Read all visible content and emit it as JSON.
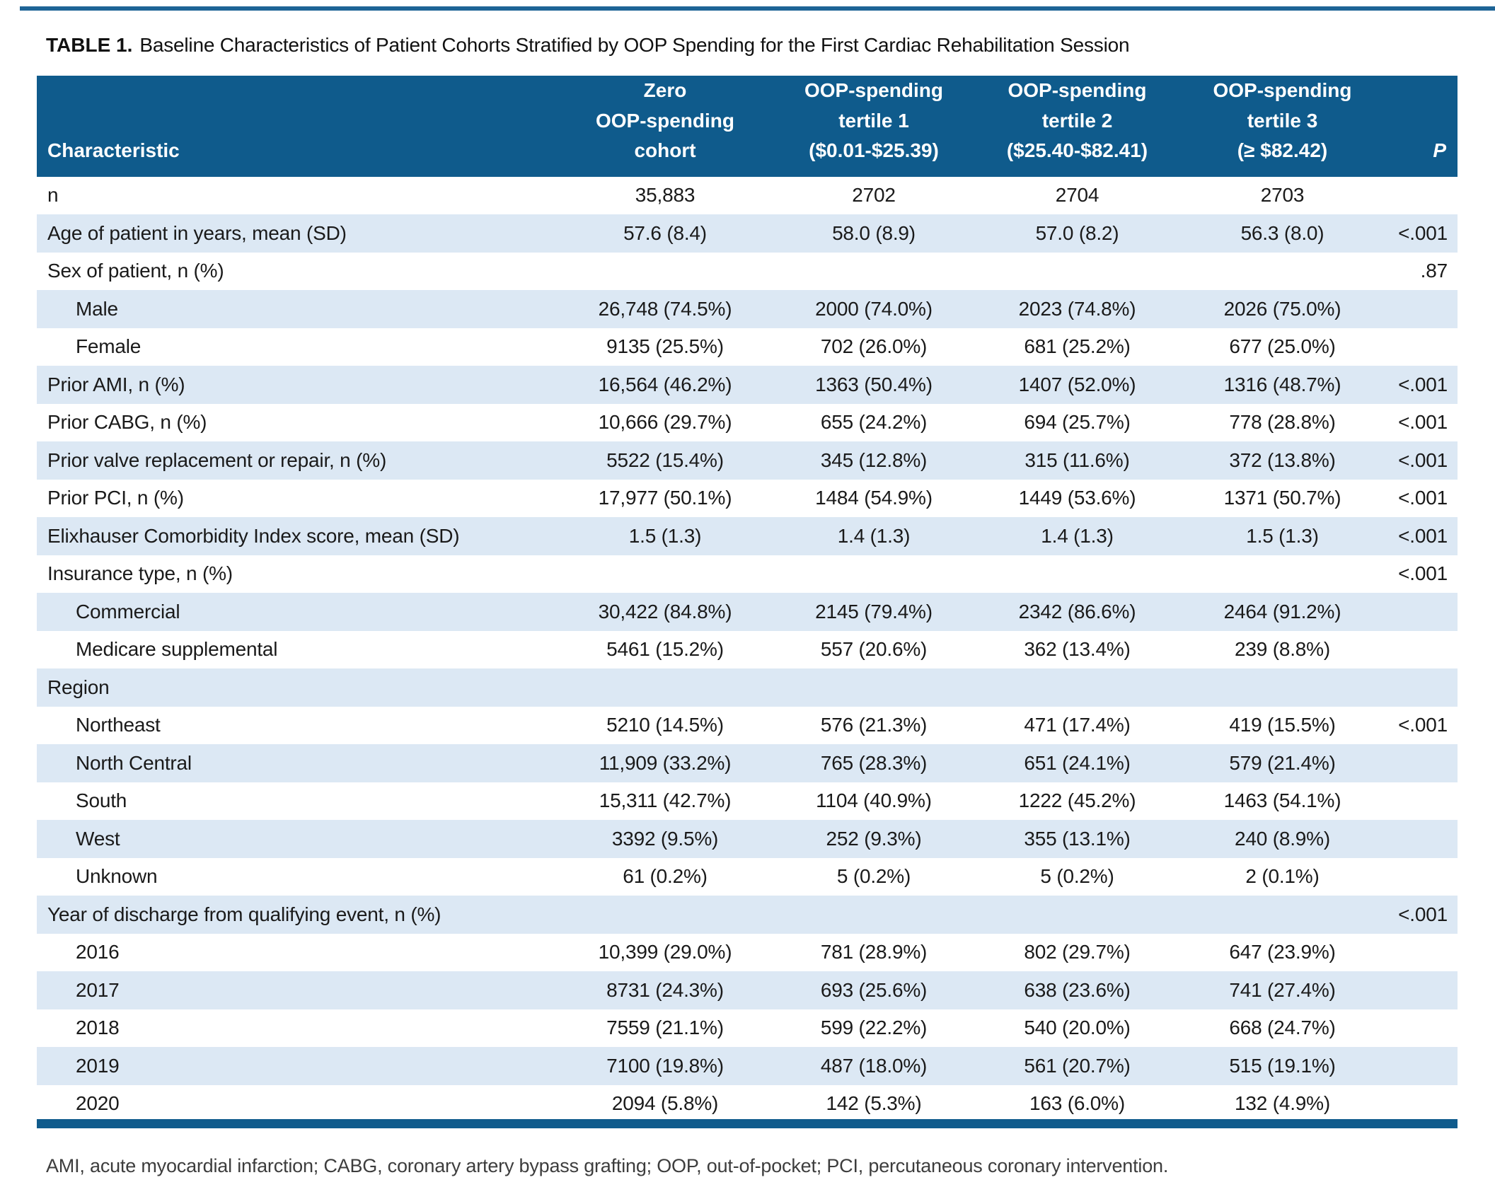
{
  "colors": {
    "header_bg": "#0F5B8C",
    "row_alt_bg": "#DCE8F4",
    "accent_rule": "#1E6496",
    "text": "#1A1A1A",
    "footnote_text": "#3D3D3D"
  },
  "title": {
    "label": "TABLE 1.",
    "text": "Baseline Characteristics of Patient Cohorts Stratified by OOP Spending for the First Cardiac Rehabilitation Session"
  },
  "table": {
    "header": {
      "characteristic": "Characteristic",
      "zero_cohort": "Zero\nOOP-spending\ncohort",
      "tertile1": "OOP-spending\ntertile 1\n($0.01-$25.39)",
      "tertile2": "OOP-spending\ntertile 2\n($25.40-$82.41)",
      "tertile3": "OOP-spending\ntertile 3\n(≥ $82.42)",
      "p": "P"
    },
    "rows": [
      {
        "label": "n",
        "indent": false,
        "values": [
          "35,883",
          "2702",
          "2704",
          "2703"
        ],
        "p": ""
      },
      {
        "label": "Age of patient in years, mean (SD)",
        "indent": false,
        "values": [
          "57.6 (8.4)",
          "58.0 (8.9)",
          "57.0 (8.2)",
          "56.3 (8.0)"
        ],
        "p": "<.001"
      },
      {
        "label": "Sex of patient, n (%)",
        "indent": false,
        "values": [
          "",
          "",
          "",
          ""
        ],
        "p": ".87"
      },
      {
        "label": "Male",
        "indent": true,
        "values": [
          "26,748 (74.5%)",
          "2000 (74.0%)",
          "2023 (74.8%)",
          "2026 (75.0%)"
        ],
        "p": ""
      },
      {
        "label": "Female",
        "indent": true,
        "values": [
          "9135 (25.5%)",
          "702 (26.0%)",
          "681 (25.2%)",
          "677 (25.0%)"
        ],
        "p": ""
      },
      {
        "label": "Prior AMI, n (%)",
        "indent": false,
        "values": [
          "16,564 (46.2%)",
          "1363 (50.4%)",
          "1407 (52.0%)",
          "1316 (48.7%)"
        ],
        "p": "<.001"
      },
      {
        "label": "Prior CABG, n (%)",
        "indent": false,
        "values": [
          "10,666 (29.7%)",
          "655 (24.2%)",
          "694 (25.7%)",
          "778 (28.8%)"
        ],
        "p": "<.001"
      },
      {
        "label": "Prior valve replacement or repair, n (%)",
        "indent": false,
        "values": [
          "5522 (15.4%)",
          "345 (12.8%)",
          "315 (11.6%)",
          "372 (13.8%)"
        ],
        "p": "<.001"
      },
      {
        "label": "Prior PCI, n (%)",
        "indent": false,
        "values": [
          "17,977 (50.1%)",
          "1484 (54.9%)",
          "1449 (53.6%)",
          "1371 (50.7%)"
        ],
        "p": "<.001"
      },
      {
        "label": "Elixhauser Comorbidity Index score, mean (SD)",
        "indent": false,
        "values": [
          "1.5 (1.3)",
          "1.4 (1.3)",
          "1.4 (1.3)",
          "1.5 (1.3)"
        ],
        "p": "<.001"
      },
      {
        "label": "Insurance type, n (%)",
        "indent": false,
        "values": [
          "",
          "",
          "",
          ""
        ],
        "p": "<.001"
      },
      {
        "label": "Commercial",
        "indent": true,
        "values": [
          "30,422 (84.8%)",
          "2145 (79.4%)",
          "2342 (86.6%)",
          "2464 (91.2%)"
        ],
        "p": ""
      },
      {
        "label": "Medicare supplemental",
        "indent": true,
        "values": [
          "5461 (15.2%)",
          "557 (20.6%)",
          "362 (13.4%)",
          "239 (8.8%)"
        ],
        "p": ""
      },
      {
        "label": "Region",
        "indent": false,
        "values": [
          "",
          "",
          "",
          ""
        ],
        "p": ""
      },
      {
        "label": "Northeast",
        "indent": true,
        "values": [
          "5210 (14.5%)",
          "576 (21.3%)",
          "471 (17.4%)",
          "419 (15.5%)"
        ],
        "p": "<.001"
      },
      {
        "label": "North Central",
        "indent": true,
        "values": [
          "11,909 (33.2%)",
          "765 (28.3%)",
          "651 (24.1%)",
          "579 (21.4%)"
        ],
        "p": ""
      },
      {
        "label": "South",
        "indent": true,
        "values": [
          "15,311 (42.7%)",
          "1104 (40.9%)",
          "1222 (45.2%)",
          "1463 (54.1%)"
        ],
        "p": ""
      },
      {
        "label": "West",
        "indent": true,
        "values": [
          "3392 (9.5%)",
          "252 (9.3%)",
          "355 (13.1%)",
          "240 (8.9%)"
        ],
        "p": ""
      },
      {
        "label": "Unknown",
        "indent": true,
        "values": [
          "61 (0.2%)",
          "5 (0.2%)",
          "5 (0.2%)",
          "2 (0.1%)"
        ],
        "p": ""
      },
      {
        "label": "Year of discharge from qualifying event, n (%)",
        "indent": false,
        "values": [
          "",
          "",
          "",
          ""
        ],
        "p": "<.001"
      },
      {
        "label": "2016",
        "indent": true,
        "values": [
          "10,399 (29.0%)",
          "781 (28.9%)",
          "802 (29.7%)",
          "647 (23.9%)"
        ],
        "p": ""
      },
      {
        "label": "2017",
        "indent": true,
        "values": [
          "8731 (24.3%)",
          "693 (25.6%)",
          "638 (23.6%)",
          "741 (27.4%)"
        ],
        "p": ""
      },
      {
        "label": "2018",
        "indent": true,
        "values": [
          "7559 (21.1%)",
          "599 (22.2%)",
          "540 (20.0%)",
          "668 (24.7%)"
        ],
        "p": ""
      },
      {
        "label": "2019",
        "indent": true,
        "values": [
          "7100 (19.8%)",
          "487 (18.0%)",
          "561 (20.7%)",
          "515 (19.1%)"
        ],
        "p": ""
      },
      {
        "label": "2020",
        "indent": true,
        "values": [
          "2094 (5.8%)",
          "142 (5.3%)",
          "163 (6.0%)",
          "132 (4.9%)"
        ],
        "p": ""
      }
    ]
  },
  "footnote": "AMI, acute myocardial infarction; CABG, coronary artery bypass grafting; OOP, out-of-pocket; PCI, percutaneous coronary intervention."
}
